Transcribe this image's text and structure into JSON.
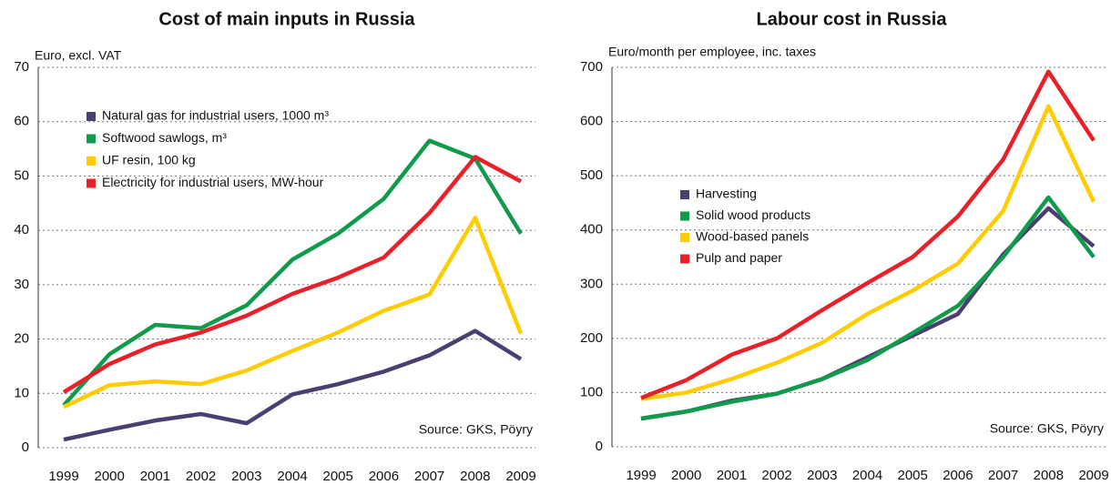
{
  "chart_data": [
    {
      "type": "line",
      "title": "Cost of main inputs in Russia",
      "y_label": "Euro, excl. VAT",
      "source": "Source: GKS, Pöyry",
      "categories": [
        "1999",
        "2000",
        "2001",
        "2002",
        "2003",
        "2004",
        "2005",
        "2006",
        "2007",
        "2008",
        "2009"
      ],
      "ylim": [
        0,
        70
      ],
      "yticks": [
        0,
        10,
        20,
        30,
        40,
        50,
        60,
        70
      ],
      "grid": true,
      "series": [
        {
          "name": "Natural gas for industrial users, 1000 m³",
          "color": "#4b3f72",
          "values": [
            1.5,
            3.3,
            5,
            6.2,
            4.5,
            9.8,
            11.7,
            14,
            17,
            21.5,
            16.3
          ]
        },
        {
          "name": "Softwood sawlogs, m³",
          "color": "#109a4c",
          "values": [
            7.8,
            17.2,
            22.6,
            22,
            26.2,
            34.6,
            39.4,
            45.8,
            56.5,
            53.2,
            39.4
          ]
        },
        {
          "name": "UF resin, 100 kg",
          "color": "#ffcc00",
          "values": [
            7.5,
            11.5,
            12.2,
            11.7,
            14.2,
            17.8,
            21.2,
            25.2,
            28.2,
            42.3,
            21
          ]
        },
        {
          "name": "Electricity for industrial users, MW-hour",
          "color": "#e8202a",
          "values": [
            10.2,
            15.4,
            19,
            21.2,
            24.3,
            28.3,
            31.3,
            35,
            43.2,
            53.5,
            49
          ]
        }
      ]
    },
    {
      "type": "line",
      "title": "Labour cost in Russia",
      "y_label": "Euro/month per employee, inc. taxes",
      "source": "Source: GKS, Pöyry",
      "categories": [
        "1999",
        "2000",
        "2001",
        "2002",
        "2003",
        "2004",
        "2005",
        "2006",
        "2007",
        "2008",
        "2009"
      ],
      "ylim": [
        0,
        700
      ],
      "yticks": [
        0,
        100,
        200,
        300,
        400,
        500,
        600,
        700
      ],
      "grid": true,
      "series": [
        {
          "name": "Harvesting",
          "color": "#4b3f72",
          "values": [
            52,
            65,
            85,
            98,
            125,
            165,
            205,
            245,
            355,
            440,
            370
          ]
        },
        {
          "name": "Solid wood products",
          "color": "#109a4c",
          "values": [
            52,
            65,
            83,
            98,
            125,
            160,
            210,
            260,
            350,
            460,
            350
          ]
        },
        {
          "name": "Wood-based panels",
          "color": "#ffcc00",
          "values": [
            88,
            100,
            125,
            155,
            192,
            245,
            288,
            338,
            435,
            628,
            452
          ]
        },
        {
          "name": "Pulp and paper",
          "color": "#e8202a",
          "values": [
            90,
            123,
            170,
            200,
            252,
            302,
            350,
            425,
            530,
            692,
            565
          ]
        }
      ]
    }
  ]
}
